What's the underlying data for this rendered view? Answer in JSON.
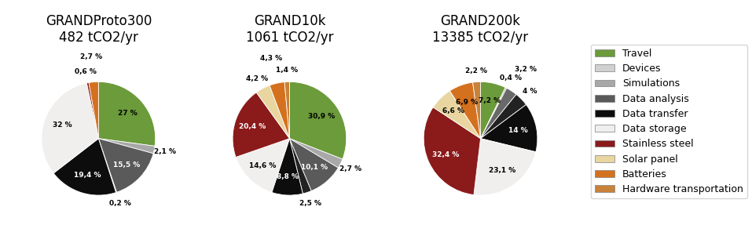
{
  "chart_data": [
    {
      "type": "pie",
      "title": "GRANDProto300\n482 tCO2/yr",
      "values": [
        27.0,
        2.1,
        15.5,
        0.2,
        19.4,
        32.0,
        0.6,
        2.7
      ],
      "value_labels": [
        "27 %",
        "2,1 %",
        "15,5 %",
        "0,2 %",
        "19,4 %",
        "32 %",
        "0,6 %",
        "2,7 %"
      ],
      "colors": [
        "#6b9b3a",
        "#a8a8a8",
        "#5a5a5a",
        "#222222",
        "#0d0d0d",
        "#f0efee",
        "#8b1a1a",
        "#d4711e"
      ],
      "data_labels": true
    },
    {
      "type": "pie",
      "title": "GRAND10k\n1061 tCO2/yr",
      "values": [
        30.9,
        2.7,
        10.1,
        2.5,
        8.8,
        14.6,
        20.4,
        4.2,
        4.3,
        1.4
      ],
      "value_labels": [
        "30,9 %",
        "2,7 %",
        "10,1 %",
        "2,5 %",
        "8,8 %",
        "14,6 %",
        "20,4 %",
        "4,2 %",
        "4,3 %",
        "1,4 %"
      ],
      "colors": [
        "#6b9b3a",
        "#a8a8a8",
        "#5a5a5a",
        "#222222",
        "#0d0d0d",
        "#f0efee",
        "#8b1a1a",
        "#e8d5a0",
        "#d4711e",
        "#c8823a"
      ],
      "data_labels": true
    },
    {
      "type": "pie",
      "title": "GRAND200k\n13385 tCO2/yr",
      "values": [
        7.2,
        0.4,
        3.2,
        4.0,
        14.0,
        23.1,
        32.4,
        6.6,
        6.9,
        2.2
      ],
      "value_labels": [
        "7,2 %",
        "0,4 %",
        "3,2 %",
        "4 %",
        "14 %",
        "23,1 %",
        "32,4 %",
        "6,6 %",
        "6,9 %",
        "2,2 %"
      ],
      "colors": [
        "#6b9b3a",
        "#a8a8a8",
        "#696969",
        "#222222",
        "#0d0d0d",
        "#f0efee",
        "#8b1a1a",
        "#e8d5a0",
        "#d4711e",
        "#c8823a"
      ],
      "data_labels": true
    }
  ],
  "legend": "center right",
  "series": [
    {
      "name": "Travel",
      "color": "#6b9b3a"
    },
    {
      "name": "Devices",
      "color": "#d0d0d0"
    },
    {
      "name": "Simulations",
      "color": "#a8a8a8"
    },
    {
      "name": "Data analysis",
      "color": "#5a5a5a"
    },
    {
      "name": "Data transfer",
      "color": "#0d0d0d"
    },
    {
      "name": "Data storage",
      "color": "#f0efee"
    },
    {
      "name": "Stainless steel",
      "color": "#8b1a1a"
    },
    {
      "name": "Solar panel",
      "color": "#e8d5a0"
    },
    {
      "name": "Batteries",
      "color": "#d4711e"
    },
    {
      "name": "Hardware transportation",
      "color": "#c8823a"
    }
  ]
}
